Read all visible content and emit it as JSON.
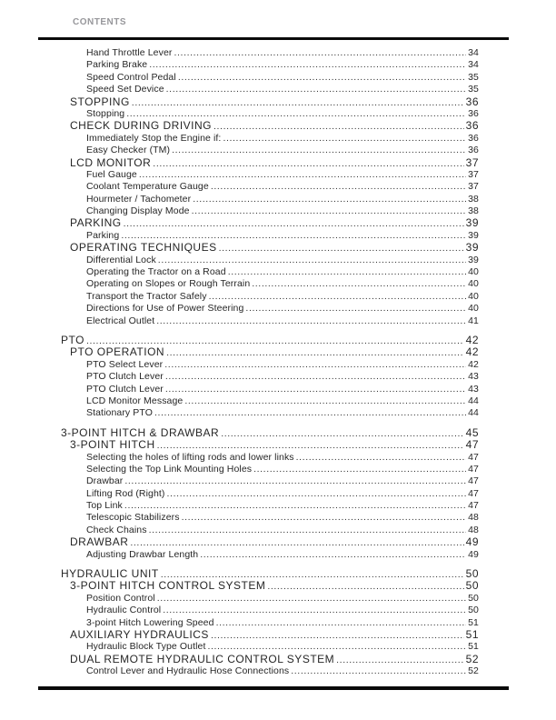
{
  "header": {
    "label": "CONTENTS"
  },
  "colors": {
    "text": "#262626",
    "header_gray": "#97979b",
    "rule": "#0a0a0a",
    "background": "#ffffff"
  },
  "toc": {
    "groups": [
      {
        "entries": [
          {
            "level": 2,
            "title": "Hand Throttle Lever",
            "page": "34"
          },
          {
            "level": 2,
            "title": "Parking Brake",
            "page": "34"
          },
          {
            "level": 2,
            "title": "Speed Control Pedal",
            "page": "35"
          },
          {
            "level": 2,
            "title": "Speed Set Device",
            "page": "35"
          },
          {
            "level": 1,
            "title": "STOPPING",
            "page": "36"
          },
          {
            "level": 2,
            "title": "Stopping",
            "page": "36"
          },
          {
            "level": 1,
            "title": "CHECK DURING DRIVING",
            "page": "36"
          },
          {
            "level": 2,
            "title": "Immediately Stop the Engine if:",
            "page": "36"
          },
          {
            "level": 2,
            "title": "Easy Checker (TM)",
            "page": "36"
          },
          {
            "level": 1,
            "title": "LCD MONITOR",
            "page": "37"
          },
          {
            "level": 2,
            "title": "Fuel Gauge",
            "page": "37"
          },
          {
            "level": 2,
            "title": "Coolant Temperature Gauge",
            "page": "37"
          },
          {
            "level": 2,
            "title": "Hourmeter / Tachometer",
            "page": "38"
          },
          {
            "level": 2,
            "title": "Changing Display Mode",
            "page": "38"
          },
          {
            "level": 1,
            "title": "PARKING",
            "page": "39"
          },
          {
            "level": 2,
            "title": "Parking",
            "page": "39"
          },
          {
            "level": 1,
            "title": "OPERATING TECHNIQUES",
            "page": "39"
          },
          {
            "level": 2,
            "title": "Differential Lock",
            "page": "39"
          },
          {
            "level": 2,
            "title": "Operating the Tractor on a Road",
            "page": "40"
          },
          {
            "level": 2,
            "title": "Operating on Slopes or Rough Terrain",
            "page": "40"
          },
          {
            "level": 2,
            "title": "Transport the Tractor Safely",
            "page": "40"
          },
          {
            "level": 2,
            "title": "Directions for Use of Power Steering",
            "page": "40"
          },
          {
            "level": 2,
            "title": "Electrical Outlet",
            "page": "41"
          }
        ]
      },
      {
        "entries": [
          {
            "level": 0,
            "title": "PTO",
            "page": "42"
          },
          {
            "level": 1,
            "title": "PTO OPERATION",
            "page": "42"
          },
          {
            "level": 2,
            "title": "PTO Select Lever",
            "page": "42"
          },
          {
            "level": 2,
            "title": "PTO Clutch Lever",
            "page": "43"
          },
          {
            "level": 2,
            "title": "PTO Clutch Lever",
            "page": "43"
          },
          {
            "level": 2,
            "title": "LCD Monitor Message",
            "page": "44"
          },
          {
            "level": 2,
            "title": "Stationary PTO",
            "page": "44"
          }
        ]
      },
      {
        "entries": [
          {
            "level": 0,
            "title": "3-POINT HITCH & DRAWBAR",
            "page": "45"
          },
          {
            "level": 1,
            "title": "3-POINT HITCH",
            "page": "47"
          },
          {
            "level": 2,
            "title": "Selecting the holes of lifting rods and lower links",
            "page": "47"
          },
          {
            "level": 2,
            "title": "Selecting the Top Link Mounting Holes",
            "page": "47"
          },
          {
            "level": 2,
            "title": "Drawbar",
            "page": "47"
          },
          {
            "level": 2,
            "title": "Lifting Rod (Right)",
            "page": "47"
          },
          {
            "level": 2,
            "title": "Top Link",
            "page": "47"
          },
          {
            "level": 2,
            "title": "Telescopic Stabilizers",
            "page": "48"
          },
          {
            "level": 2,
            "title": "Check Chains",
            "page": "48"
          },
          {
            "level": 1,
            "title": "DRAWBAR",
            "page": "49"
          },
          {
            "level": 2,
            "title": "Adjusting Drawbar Length",
            "page": "49"
          }
        ]
      },
      {
        "entries": [
          {
            "level": 0,
            "title": "HYDRAULIC UNIT",
            "page": "50"
          },
          {
            "level": 1,
            "title": "3-POINT HITCH CONTROL SYSTEM",
            "page": "50"
          },
          {
            "level": 2,
            "title": "Position Control",
            "page": "50"
          },
          {
            "level": 2,
            "title": "Hydraulic Control",
            "page": "50"
          },
          {
            "level": 2,
            "title": "3-point Hitch Lowering Speed",
            "page": "51"
          },
          {
            "level": 1,
            "title": "AUXILIARY HYDRAULICS",
            "page": "51"
          },
          {
            "level": 2,
            "title": "Hydraulic Block Type Outlet",
            "page": "51"
          },
          {
            "level": 1,
            "title": "DUAL REMOTE HYDRAULIC CONTROL SYSTEM",
            "page": "52"
          },
          {
            "level": 2,
            "title": "Control Lever and Hydraulic Hose Connections",
            "page": "52"
          }
        ]
      }
    ]
  }
}
